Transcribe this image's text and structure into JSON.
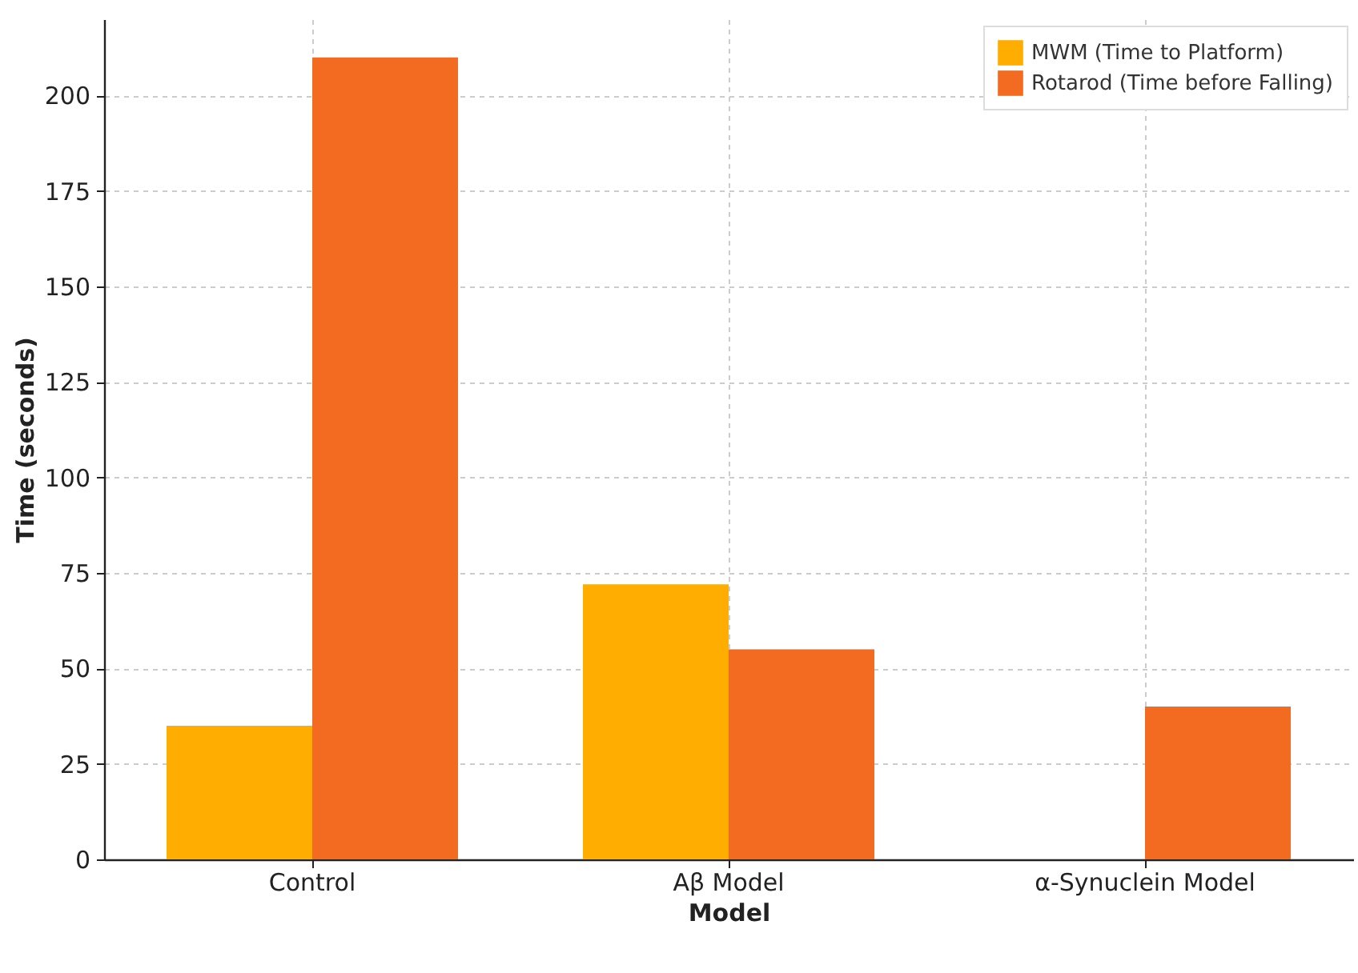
{
  "chart_data": {
    "type": "bar",
    "xlabel": "Model",
    "ylabel": "Time (seconds)",
    "categories": [
      "Control",
      "Aβ Model",
      "α-Synuclein Model"
    ],
    "series": [
      {
        "name": "MWM (Time to Platform)",
        "color": "#ffad00",
        "values": [
          35,
          72,
          null
        ]
      },
      {
        "name": "Rotarod (Time before Falling)",
        "color": "#f26b21",
        "values": [
          210,
          55,
          40
        ]
      }
    ],
    "ylim": [
      0,
      220
    ],
    "yticks": [
      0,
      25,
      50,
      75,
      100,
      125,
      150,
      175,
      200
    ],
    "grid": true,
    "legend": "top right"
  }
}
